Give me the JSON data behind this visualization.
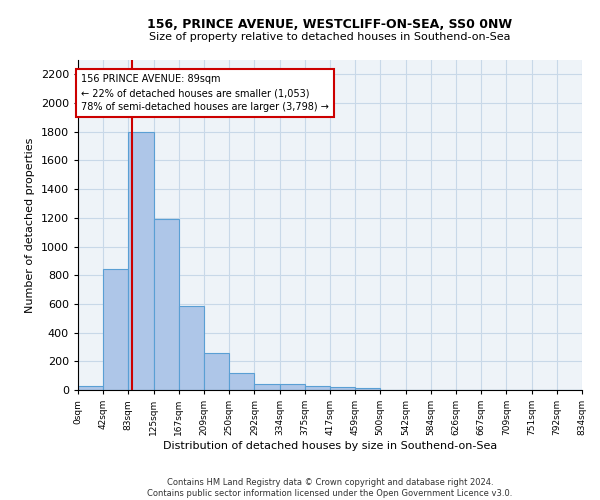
{
  "title1": "156, PRINCE AVENUE, WESTCLIFF-ON-SEA, SS0 0NW",
  "title2": "Size of property relative to detached houses in Southend-on-Sea",
  "xlabel": "Distribution of detached houses by size in Southend-on-Sea",
  "ylabel": "Number of detached properties",
  "footer1": "Contains HM Land Registry data © Crown copyright and database right 2024.",
  "footer2": "Contains public sector information licensed under the Open Government Licence v3.0.",
  "bar_edges": [
    0,
    42,
    83,
    125,
    167,
    209,
    250,
    292,
    334,
    375,
    417,
    459,
    500,
    542,
    584,
    626,
    667,
    709,
    751,
    792,
    834
  ],
  "bar_values": [
    25,
    840,
    1800,
    1195,
    585,
    255,
    120,
    45,
    45,
    30,
    20,
    15,
    0,
    0,
    0,
    0,
    0,
    0,
    0,
    0
  ],
  "bar_color": "#aec6e8",
  "bar_edgecolor": "#5a9fd4",
  "grid_color": "#c8d8e8",
  "bg_color": "#eef3f8",
  "property_value": 89,
  "annotation_text": "156 PRINCE AVENUE: 89sqm\n← 22% of detached houses are smaller (1,053)\n78% of semi-detached houses are larger (3,798) →",
  "annotation_box_color": "#cc0000",
  "vline_color": "#cc0000",
  "ylim": [
    0,
    2300
  ],
  "yticks": [
    0,
    200,
    400,
    600,
    800,
    1000,
    1200,
    1400,
    1600,
    1800,
    2000,
    2200
  ],
  "tick_labels": [
    "0sqm",
    "42sqm",
    "83sqm",
    "125sqm",
    "167sqm",
    "209sqm",
    "250sqm",
    "292sqm",
    "334sqm",
    "375sqm",
    "417sqm",
    "459sqm",
    "500sqm",
    "542sqm",
    "584sqm",
    "626sqm",
    "667sqm",
    "709sqm",
    "751sqm",
    "792sqm",
    "834sqm"
  ]
}
